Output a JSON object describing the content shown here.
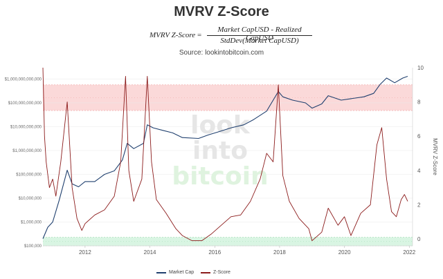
{
  "header": {
    "title": "MVRV Z-Score",
    "formula_lhs": "MVRV Z-Score",
    "formula_eq": "=",
    "formula_numerator": "Market CapUSD - Realized CapUSD",
    "formula_denominator": "StdDev(Market CapUSD)",
    "source": "Source: lookintobitcoin.com"
  },
  "watermark": {
    "line1": "look",
    "line2": "into",
    "line3": "bitcoin",
    "colors": [
      "#e6e6e6",
      "#e6e6e6",
      "#dff3df"
    ]
  },
  "legend": {
    "market_cap": "Market Cap",
    "zscore": "Z-Score"
  },
  "colors": {
    "market_cap": "#1f3f6e",
    "zscore": "#8b1a1a",
    "red_band": "#fbd9d9",
    "green_band": "#d9f5e3",
    "grid": "#e8e8e8"
  },
  "chart_data": {
    "type": "line",
    "title": "MVRV Z-Score",
    "xlabel": "",
    "ylabel_left": "",
    "ylabel_right": "MVRV Z-Score",
    "x_ticks": [
      "2012",
      "2014",
      "2016",
      "2018",
      "2020",
      "2022"
    ],
    "xlim": [
      2010.7,
      2022.1
    ],
    "y_left_scale": "log",
    "y_left_ticks": [
      "$100,000",
      "$1,000,000",
      "$10,000,000",
      "$100,000,000",
      "$1,000,000,000",
      "$10,000,000,000",
      "$100,000,000,000",
      "$1,000,000,000,000"
    ],
    "y_left_lim": [
      100000,
      3000000000000
    ],
    "y_right_ticks": [
      "0",
      "2",
      "4",
      "6",
      "8",
      "10"
    ],
    "y_right_lim": [
      -0.4,
      10
    ],
    "bands": [
      {
        "zone": "red",
        "zscore_range": [
          7.5,
          9
        ]
      },
      {
        "zone": "green",
        "zscore_range": [
          -0.4,
          0.1
        ]
      }
    ],
    "legend_position": "bottom",
    "grid": true,
    "series": [
      {
        "name": "Market Cap",
        "axis": "left",
        "x": [
          2010.7,
          2010.85,
          2011.0,
          2011.2,
          2011.45,
          2011.6,
          2011.8,
          2012.0,
          2012.3,
          2012.6,
          2012.9,
          2013.15,
          2013.3,
          2013.5,
          2013.8,
          2013.92,
          2014.1,
          2014.4,
          2014.7,
          2015.0,
          2015.5,
          2015.8,
          2016.1,
          2016.5,
          2016.9,
          2017.2,
          2017.6,
          2017.96,
          2018.1,
          2018.4,
          2018.8,
          2019.0,
          2019.3,
          2019.5,
          2019.9,
          2020.2,
          2020.6,
          2020.9,
          2021.1,
          2021.3,
          2021.55,
          2021.8,
          2021.95
        ],
        "values": [
          200000,
          600000,
          1000000,
          8000000,
          150000000,
          40000000,
          30000000,
          50000000,
          50000000,
          100000000,
          140000000,
          400000000,
          2000000000,
          1200000000,
          2000000000,
          12000000000,
          9000000000,
          7000000000,
          5500000000,
          3500000000,
          3200000000,
          4500000000,
          6000000000,
          9000000000,
          12000000000,
          20000000000,
          45000000000,
          300000000000,
          180000000000,
          130000000000,
          100000000000,
          60000000000,
          90000000000,
          200000000000,
          130000000000,
          150000000000,
          180000000000,
          250000000000,
          600000000000,
          1100000000000,
          700000000000,
          1100000000000,
          1300000000000
        ]
      },
      {
        "name": "Z-Score",
        "axis": "right",
        "x": [
          2010.7,
          2010.75,
          2010.8,
          2010.9,
          2011.0,
          2011.1,
          2011.25,
          2011.45,
          2011.6,
          2011.75,
          2011.9,
          2012.0,
          2012.3,
          2012.6,
          2012.9,
          2013.1,
          2013.25,
          2013.35,
          2013.5,
          2013.75,
          2013.92,
          2014.05,
          2014.2,
          2014.5,
          2014.8,
          2015.0,
          2015.3,
          2015.6,
          2015.9,
          2016.2,
          2016.5,
          2016.8,
          2017.1,
          2017.4,
          2017.6,
          2017.8,
          2017.96,
          2018.1,
          2018.3,
          2018.6,
          2018.9,
          2019.0,
          2019.3,
          2019.5,
          2019.8,
          2020.0,
          2020.2,
          2020.5,
          2020.8,
          2021.0,
          2021.15,
          2021.3,
          2021.45,
          2021.6,
          2021.75,
          2021.85,
          2021.95
        ],
        "values": [
          10,
          6,
          4.5,
          3,
          3.5,
          2.5,
          4.5,
          8,
          3,
          1.2,
          0.5,
          0.9,
          1.4,
          1.7,
          2.5,
          4.5,
          9.5,
          4,
          2.2,
          3.5,
          9.5,
          4.5,
          2.3,
          1.5,
          0.6,
          0.2,
          -0.1,
          -0.1,
          0.3,
          0.8,
          1.3,
          1.4,
          2.2,
          3.5,
          5,
          4.5,
          9.0,
          3.7,
          2.2,
          1.2,
          0.6,
          -0.1,
          0.4,
          1.8,
          0.8,
          1.3,
          0.2,
          1.5,
          2.0,
          5.5,
          6.5,
          3.5,
          1.6,
          1.3,
          2.3,
          2.6,
          2.2
        ]
      }
    ]
  }
}
